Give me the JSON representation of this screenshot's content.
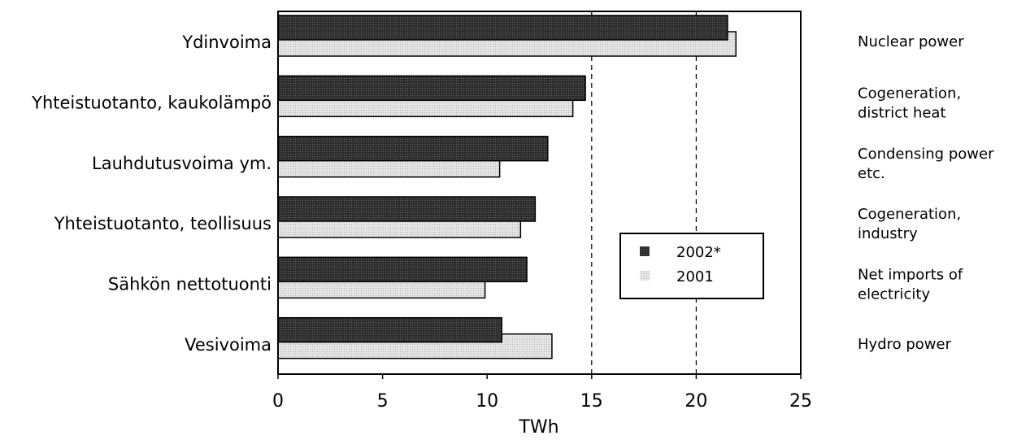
{
  "chart_data": {
    "type": "bar",
    "orientation": "horizontal",
    "categories": [
      "Ydinvoima",
      "Yhteistuotanto, kaukolämpö",
      "Lauhdutusvoima ym.",
      "Yhteistuotanto, teollisuus",
      "Sähkön nettotuonti",
      "Vesivoima"
    ],
    "categories_en": [
      [
        "Nuclear power"
      ],
      [
        "Cogeneration,",
        "district heat"
      ],
      [
        "Condensing power",
        "etc."
      ],
      [
        "Cogeneration,",
        "industry"
      ],
      [
        "Net imports of",
        "electricity"
      ],
      [
        "Hydro power"
      ]
    ],
    "series": [
      {
        "name": "2002*",
        "values": [
          21.5,
          14.7,
          12.9,
          12.3,
          11.9,
          10.7
        ],
        "color": "#3a3a3a"
      },
      {
        "name": "2001",
        "values": [
          21.9,
          14.1,
          10.6,
          11.6,
          9.9,
          13.1
        ],
        "color": "#dcdcdc"
      }
    ],
    "xlabel": "TWh",
    "xlim": [
      0,
      25
    ],
    "xticks": [
      0,
      5,
      10,
      15,
      20,
      25
    ],
    "gridlines_dashed": [
      15,
      20
    ],
    "legend_position": "lower-right inside plot"
  }
}
